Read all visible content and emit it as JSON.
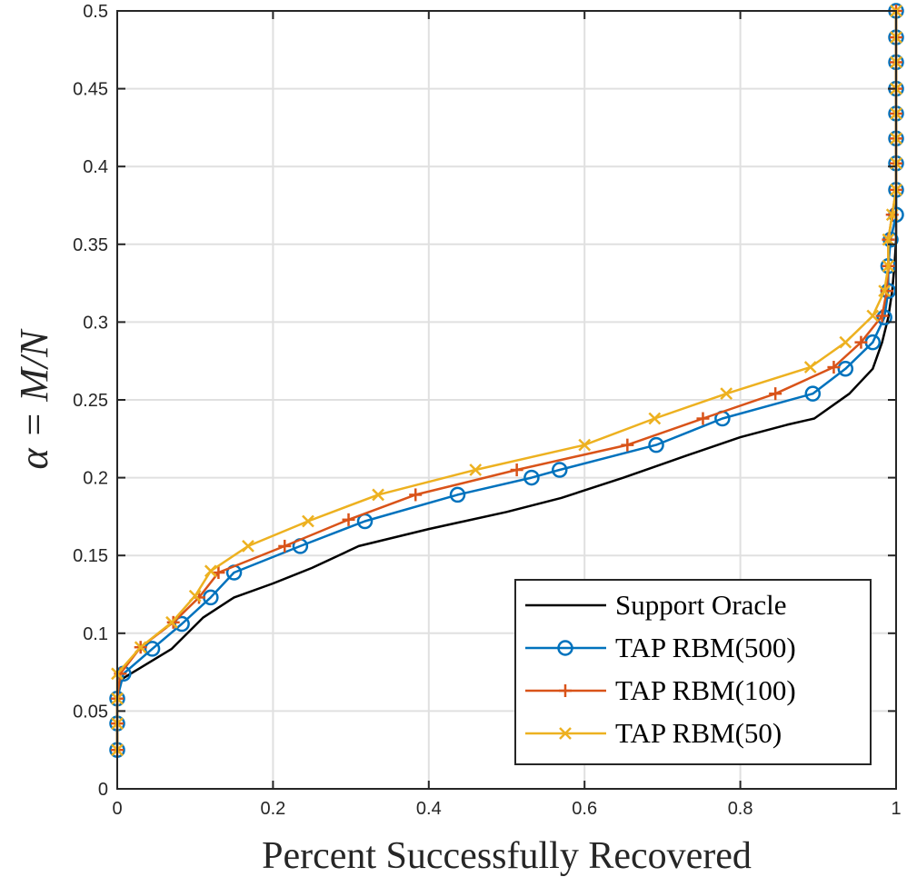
{
  "chart_data": {
    "type": "line",
    "title": "",
    "xlabel": "Percent Successfully Recovered",
    "ylabel": "α = M/N",
    "xlim": [
      0,
      1
    ],
    "ylim": [
      0,
      0.5
    ],
    "xticks": [
      "0",
      "0.2",
      "0.4",
      "0.6",
      "0.8",
      "1"
    ],
    "yticks": [
      "0",
      "0.05",
      "0.1",
      "0.15",
      "0.2",
      "0.25",
      "0.3",
      "0.35",
      "0.4",
      "0.45",
      "0.5"
    ],
    "grid": true,
    "legend_position": "bottom-right",
    "series": [
      {
        "name": "Support Oracle",
        "color": "#000000",
        "marker": "none",
        "points": [
          [
            0,
            0.025
          ],
          [
            0,
            0.042
          ],
          [
            0,
            0.058
          ],
          [
            0.004,
            0.07
          ],
          [
            0.07,
            0.09
          ],
          [
            0.11,
            0.11
          ],
          [
            0.15,
            0.123
          ],
          [
            0.2,
            0.132
          ],
          [
            0.25,
            0.142
          ],
          [
            0.31,
            0.156
          ],
          [
            0.4,
            0.167
          ],
          [
            0.5,
            0.178
          ],
          [
            0.57,
            0.187
          ],
          [
            0.65,
            0.2
          ],
          [
            0.73,
            0.214
          ],
          [
            0.8,
            0.226
          ],
          [
            0.86,
            0.234
          ],
          [
            0.895,
            0.238
          ],
          [
            0.94,
            0.254
          ],
          [
            0.97,
            0.27
          ],
          [
            0.982,
            0.287
          ],
          [
            0.99,
            0.303
          ],
          [
            0.995,
            0.32
          ],
          [
            0.998,
            0.337
          ],
          [
            1,
            0.353
          ],
          [
            1,
            0.37
          ],
          [
            1,
            0.386
          ],
          [
            1,
            0.402
          ],
          [
            1,
            0.418
          ],
          [
            1,
            0.434
          ],
          [
            1,
            0.45
          ],
          [
            1,
            0.467
          ],
          [
            1,
            0.483
          ],
          [
            1,
            0.5
          ]
        ]
      },
      {
        "name": "TAP RBM(500)",
        "color": "#0072BD",
        "marker": "circle",
        "points": [
          [
            0,
            0.025
          ],
          [
            0,
            0.042
          ],
          [
            0,
            0.058
          ],
          [
            0.008,
            0.074
          ],
          [
            0.045,
            0.09
          ],
          [
            0.083,
            0.106
          ],
          [
            0.12,
            0.123
          ],
          [
            0.15,
            0.139
          ],
          [
            0.235,
            0.156
          ],
          [
            0.318,
            0.172
          ],
          [
            0.437,
            0.189
          ],
          [
            0.532,
            0.2
          ],
          [
            0.568,
            0.205
          ],
          [
            0.692,
            0.221
          ],
          [
            0.777,
            0.238
          ],
          [
            0.893,
            0.254
          ],
          [
            0.935,
            0.27
          ],
          [
            0.97,
            0.287
          ],
          [
            0.985,
            0.303
          ],
          [
            0.99,
            0.32
          ],
          [
            0.99,
            0.336
          ],
          [
            0.993,
            0.353
          ],
          [
            1,
            0.369
          ],
          [
            1,
            0.385
          ],
          [
            1,
            0.402
          ],
          [
            1,
            0.418
          ],
          [
            1,
            0.434
          ],
          [
            1,
            0.45
          ],
          [
            1,
            0.467
          ],
          [
            1,
            0.483
          ],
          [
            1,
            0.5
          ]
        ]
      },
      {
        "name": "TAP RBM(100)",
        "color": "#D95319",
        "marker": "plus",
        "points": [
          [
            0,
            0.025
          ],
          [
            0,
            0.042
          ],
          [
            0,
            0.058
          ],
          [
            0.004,
            0.074
          ],
          [
            0.03,
            0.091
          ],
          [
            0.072,
            0.107
          ],
          [
            0.105,
            0.123
          ],
          [
            0.13,
            0.139
          ],
          [
            0.215,
            0.156
          ],
          [
            0.297,
            0.173
          ],
          [
            0.383,
            0.189
          ],
          [
            0.513,
            0.205
          ],
          [
            0.655,
            0.221
          ],
          [
            0.752,
            0.238
          ],
          [
            0.845,
            0.254
          ],
          [
            0.92,
            0.271
          ],
          [
            0.955,
            0.287
          ],
          [
            0.982,
            0.304
          ],
          [
            0.988,
            0.32
          ],
          [
            0.99,
            0.336
          ],
          [
            0.99,
            0.353
          ],
          [
            0.995,
            0.369
          ],
          [
            1,
            0.385
          ],
          [
            1,
            0.402
          ],
          [
            1,
            0.418
          ],
          [
            1,
            0.434
          ],
          [
            1,
            0.45
          ],
          [
            1,
            0.467
          ],
          [
            1,
            0.483
          ],
          [
            1,
            0.5
          ]
        ]
      },
      {
        "name": "TAP RBM(50)",
        "color": "#EDB120",
        "marker": "x",
        "points": [
          [
            0,
            0.025
          ],
          [
            0,
            0.042
          ],
          [
            0,
            0.058
          ],
          [
            0,
            0.074
          ],
          [
            0.03,
            0.091
          ],
          [
            0.07,
            0.107
          ],
          [
            0.1,
            0.124
          ],
          [
            0.12,
            0.14
          ],
          [
            0.168,
            0.156
          ],
          [
            0.245,
            0.172
          ],
          [
            0.335,
            0.189
          ],
          [
            0.46,
            0.205
          ],
          [
            0.6,
            0.221
          ],
          [
            0.69,
            0.238
          ],
          [
            0.782,
            0.254
          ],
          [
            0.89,
            0.271
          ],
          [
            0.935,
            0.287
          ],
          [
            0.97,
            0.304
          ],
          [
            0.985,
            0.32
          ],
          [
            0.99,
            0.336
          ],
          [
            0.99,
            0.353
          ],
          [
            0.995,
            0.369
          ],
          [
            1,
            0.385
          ],
          [
            1,
            0.402
          ],
          [
            1,
            0.418
          ],
          [
            1,
            0.434
          ],
          [
            1,
            0.45
          ],
          [
            1,
            0.467
          ],
          [
            1,
            0.483
          ],
          [
            1,
            0.5
          ]
        ]
      }
    ]
  }
}
